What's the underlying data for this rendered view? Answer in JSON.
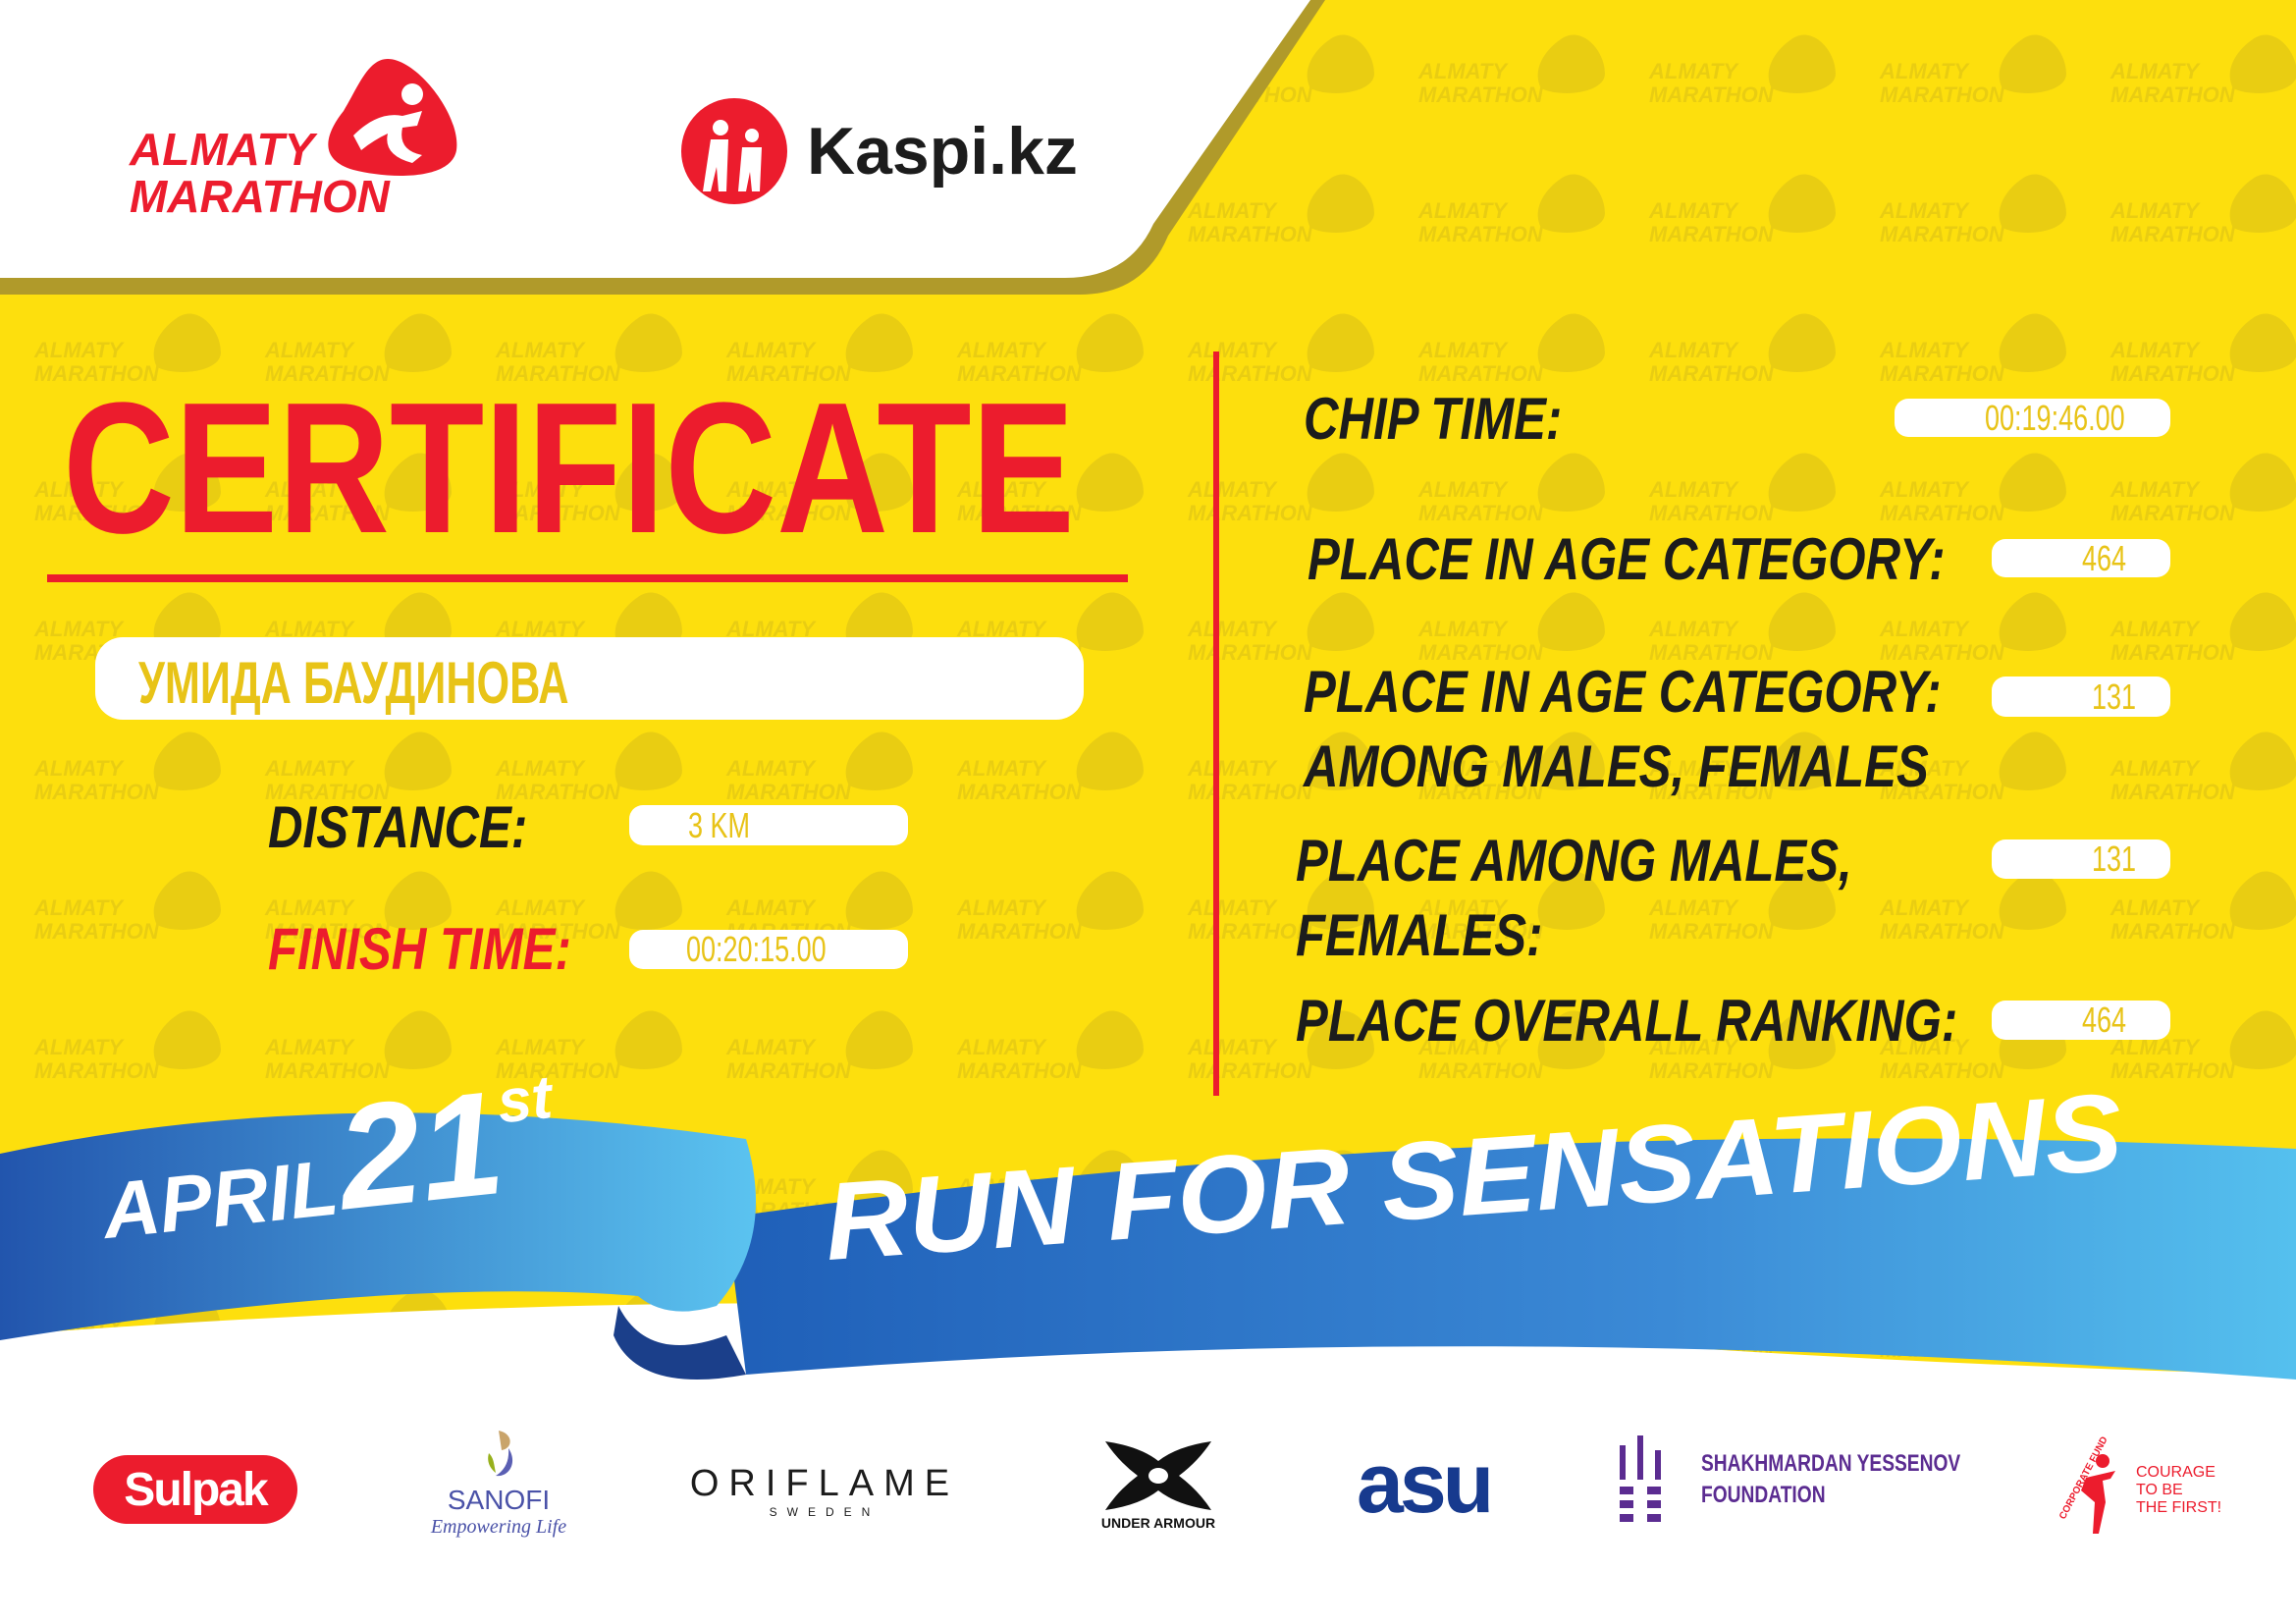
{
  "colors": {
    "yellow": "#fddf0d",
    "red": "#ec1c2d",
    "blue": "#2a74c9",
    "light_blue": "#55c0ee",
    "gold": "#b09a2a",
    "dark": "#1c1c1c"
  },
  "watermark": {
    "line1": "ALMATY",
    "line2": "MARATHON"
  },
  "header": {
    "logo_line1": "ALMATY",
    "logo_line2": "MARATHON",
    "partner": "Kaspi.kz"
  },
  "certificate": {
    "title": "CERTIFICATE",
    "name": "УМИДА БАУДИНОВА",
    "distance_label": "DISTANCE:",
    "distance_value": "3 KM",
    "finish_label": "FINISH TIME:",
    "finish_value": "00:20:15.00"
  },
  "results": [
    {
      "label_lines": [
        "CHIP TIME:"
      ],
      "value": "00:19:46.00"
    },
    {
      "label_lines": [
        "PLACE IN AGE CATEGORY:"
      ],
      "value": "464"
    },
    {
      "label_lines": [
        "PLACE IN AGE CATEGORY:",
        "AMONG MALES, FEMALES"
      ],
      "value": "131"
    },
    {
      "label_lines": [
        "PLACE AMONG MALES,",
        "FEMALES:"
      ],
      "value": "131"
    },
    {
      "label_lines": [
        "PLACE OVERALL RANKING:"
      ],
      "value": "464"
    }
  ],
  "ribbon": {
    "month": "APRIL",
    "day": "21",
    "suffix": "st",
    "slogan": "RUN FOR SENSATIONS"
  },
  "sponsors": {
    "sulpak": "Sulpak",
    "sanofi": "SANOFI",
    "sanofi_tag": "Empowering Life",
    "oriflame": "ORIFLAME",
    "oriflame_sub": "SWEDEN",
    "under_armour": "UNDER ARMOUR",
    "asu": "asu",
    "yessenov_1": "SHAKHMARDAN YESSENOV",
    "yessenov_2": "FOUNDATION",
    "courage_1": "COURAGE",
    "courage_2": "TO BE",
    "courage_3": "THE FIRST!",
    "courage_arc": "CORPORATE FUND"
  }
}
